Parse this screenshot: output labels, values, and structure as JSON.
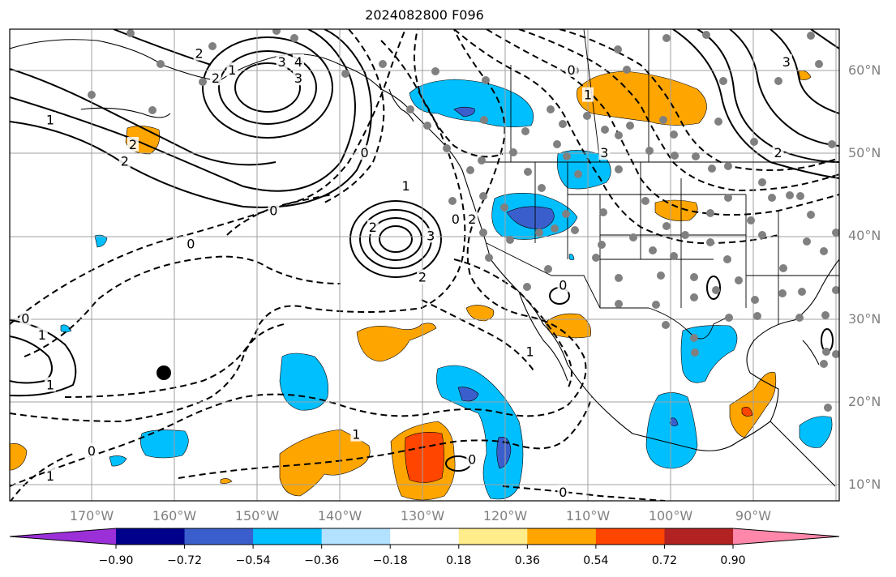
{
  "title": "2024082800 F096",
  "lat_labels": [
    {
      "text": "60°N",
      "lat": 60
    },
    {
      "text": "50°N",
      "lat": 50
    },
    {
      "text": "40°N",
      "lat": 40
    },
    {
      "text": "30°N",
      "lat": 30
    },
    {
      "text": "20°N",
      "lat": 20
    },
    {
      "text": "10°N",
      "lat": 10
    }
  ],
  "lon_labels": [
    {
      "text": "170°W",
      "lon": -170
    },
    {
      "text": "160°W",
      "lon": -160
    },
    {
      "text": "150°W",
      "lon": -150
    },
    {
      "text": "140°W",
      "lon": -140
    },
    {
      "text": "130°W",
      "lon": -130
    },
    {
      "text": "120°W",
      "lon": -120
    },
    {
      "text": "110°W",
      "lon": -110
    },
    {
      "text": "100°W",
      "lon": -100
    },
    {
      "text": "90°W",
      "lon": -90
    }
  ],
  "colorbar": {
    "colors": [
      "#9b30d8",
      "#00008b",
      "#3a5fcd",
      "#00bfff",
      "#b2e2ff",
      "#ffffff",
      "#ffec8b",
      "#ffa500",
      "#ff4500",
      "#b22222",
      "#ff88aa"
    ],
    "tick_labels": [
      "−0.90",
      "−0.72",
      "−0.54",
      "−0.36",
      "−0.18",
      "0.18",
      "0.36",
      "0.54",
      "0.72",
      "0.90"
    ]
  },
  "contour_labels": [
    {
      "text": "2",
      "lon": -157,
      "lat": 62
    },
    {
      "text": "1",
      "lon": -153,
      "lat": 60
    },
    {
      "text": "2",
      "lon": -155,
      "lat": 59
    },
    {
      "text": "3",
      "lon": -147,
      "lat": 61
    },
    {
      "text": "4",
      "lon": -145,
      "lat": 61
    },
    {
      "text": "3",
      "lon": -145,
      "lat": 59
    },
    {
      "text": "1",
      "lon": -175,
      "lat": 54
    },
    {
      "text": "2",
      "lon": -165,
      "lat": 51
    },
    {
      "text": "2",
      "lon": -166,
      "lat": 49
    },
    {
      "text": "0",
      "lon": -137,
      "lat": 50
    },
    {
      "text": "0",
      "lon": -148,
      "lat": 43
    },
    {
      "text": "1",
      "lon": -132,
      "lat": 46
    },
    {
      "text": "2",
      "lon": -136,
      "lat": 41
    },
    {
      "text": "3",
      "lon": -129,
      "lat": 40
    },
    {
      "text": "2",
      "lon": -130,
      "lat": 35
    },
    {
      "text": "2",
      "lon": -124,
      "lat": 42
    },
    {
      "text": "0",
      "lon": -126,
      "lat": 42
    },
    {
      "text": "0",
      "lon": -178,
      "lat": 30
    },
    {
      "text": "1",
      "lon": -176,
      "lat": 28
    },
    {
      "text": "1",
      "lon": -175,
      "lat": 22
    },
    {
      "text": "0",
      "lon": -170,
      "lat": 14
    },
    {
      "text": "1",
      "lon": -175,
      "lat": 11
    },
    {
      "text": "0",
      "lon": -158,
      "lat": 39
    },
    {
      "text": "1",
      "lon": -138,
      "lat": 16
    },
    {
      "text": "0",
      "lon": -124,
      "lat": 13
    },
    {
      "text": "0",
      "lon": -113,
      "lat": 9
    },
    {
      "text": "1",
      "lon": -117,
      "lat": 26
    },
    {
      "text": "0",
      "lon": -113,
      "lat": 34
    },
    {
      "text": "0",
      "lon": -112,
      "lat": 60
    },
    {
      "text": "1",
      "lon": -110,
      "lat": 57
    },
    {
      "text": "3",
      "lon": -108,
      "lat": 50
    },
    {
      "text": "3",
      "lon": -86,
      "lat": 61
    },
    {
      "text": "2",
      "lon": -87,
      "lat": 50
    }
  ]
}
